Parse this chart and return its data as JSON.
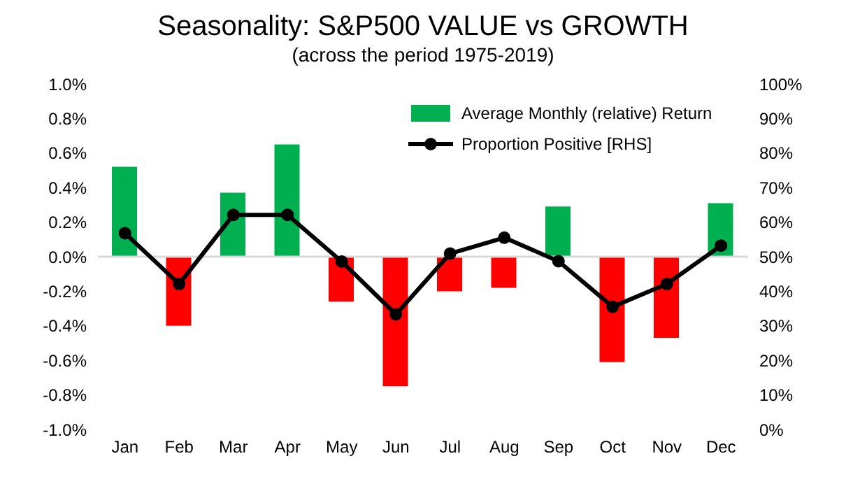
{
  "chart_data": {
    "type": "bar",
    "title": "Seasonality: S&P500 VALUE vs GROWTH",
    "subtitle": "(across the period 1975-2019)",
    "categories": [
      "Jan",
      "Feb",
      "Mar",
      "Apr",
      "May",
      "Jun",
      "Jul",
      "Aug",
      "Sep",
      "Oct",
      "Nov",
      "Dec"
    ],
    "series": [
      {
        "name": "Average Monthly (relative) Return",
        "color": "#00b050",
        "colors": [
          "#00b050",
          "#ff0000",
          "#00b050",
          "#00b050",
          "#ff0000",
          "#ff0000",
          "#ff0000",
          "#ff0000",
          "#00b050",
          "#ff0000",
          "#ff0000",
          "#00b050"
        ],
        "values": [
          0.52,
          -0.4,
          0.37,
          0.65,
          -0.26,
          -0.75,
          -0.2,
          -0.18,
          0.29,
          -0.61,
          -0.47,
          0.31
        ]
      },
      {
        "name": "Proportion Positive [RHS]",
        "type": "line",
        "axis": "y2",
        "color": "#000000",
        "values": [
          56.8,
          42.1,
          62.1,
          62.1,
          48.6,
          33.3,
          50.9,
          55.5,
          48.7,
          35.5,
          42.1,
          53.2
        ]
      }
    ],
    "ylim": [
      -1,
      1
    ],
    "yticks": [
      {
        "value": -1,
        "label": "-1.0%"
      },
      {
        "value": -0.8,
        "label": "-0.8%"
      },
      {
        "value": -0.6,
        "label": "-0.6%"
      },
      {
        "value": -0.4,
        "label": "-0.4%"
      },
      {
        "value": -0.2,
        "label": "-0.2%"
      },
      {
        "value": 0,
        "label": "0.0%"
      },
      {
        "value": 0.2,
        "label": "0.2%"
      },
      {
        "value": 0.4,
        "label": "0.4%"
      },
      {
        "value": 0.6,
        "label": "0.6%"
      },
      {
        "value": 0.8,
        "label": "0.8%"
      },
      {
        "value": 1,
        "label": "1.0%"
      }
    ],
    "y2lim": [
      0,
      100
    ],
    "y2ticks": [
      {
        "value": 0,
        "label": "0%"
      },
      {
        "value": 10,
        "label": "10%"
      },
      {
        "value": 20,
        "label": "20%"
      },
      {
        "value": 30,
        "label": "30%"
      },
      {
        "value": 40,
        "label": "40%"
      },
      {
        "value": 50,
        "label": "50%"
      },
      {
        "value": 60,
        "label": "60%"
      },
      {
        "value": 70,
        "label": "70%"
      },
      {
        "value": 80,
        "label": "80%"
      },
      {
        "value": 90,
        "label": "90%"
      },
      {
        "value": 100,
        "label": "100%"
      }
    ],
    "ref_lines": [
      {
        "axis": "y",
        "value": 0,
        "color": "#d9d9d9"
      }
    ],
    "marker": "circle",
    "line_style": "solid",
    "grid": false,
    "legend": "top right"
  }
}
